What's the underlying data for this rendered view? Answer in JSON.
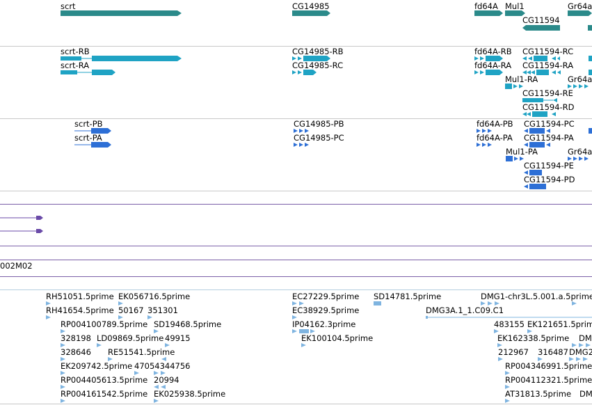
{
  "colors": {
    "gene": "#2b8a8a",
    "transcript": "#1fa3c4",
    "protein": "#2d6fd6",
    "purple": "#6a4aa8",
    "est": "#7fb4e0",
    "divider": "#c8c8c8",
    "purple_line": "#7a5fa8"
  },
  "gene_track": {
    "labels": [
      "scrt",
      "CG14985",
      "fd64A",
      "Mul1",
      "Gr64a",
      "CG11594"
    ]
  },
  "transcript_track": {
    "labels": [
      "scrt-RB",
      "scrt-RA",
      "CG14985-RB",
      "CG14985-RC",
      "fd64A-RB",
      "fd64A-RA",
      "CG11594-RC",
      "CG11594-RA",
      "Mul1-RA",
      "Gr64a",
      "CG11594-RE",
      "CG11594-RD"
    ]
  },
  "protein_track": {
    "labels": [
      "scrt-PB",
      "scrt-PA",
      "CG14985-PB",
      "CG14985-PC",
      "fd64A-PB",
      "fd64A-PA",
      "CG11594-PC",
      "CG11594-PA",
      "Mul1-PA",
      "Gr64a",
      "CG11594-PE",
      "CG11594-PD"
    ]
  },
  "misc_track": {
    "label": "002M02"
  },
  "est_track": {
    "labels": [
      "RH51051.5prime",
      "EK056716.5prime",
      "EC27229.5prime",
      "SD14781.5prime",
      "DMG1-chr3L.5.001.a.5prime",
      "RH41654.5prime",
      "50167",
      "351301",
      "EC38929.5prime",
      "DMG3A.1_1.C09.C1",
      "RP004100789.5prime",
      "SD19468.5prime",
      "IP04162.3prime",
      "483155",
      "EK121651.5prim",
      "328198",
      "LD09869.5prime",
      "49915",
      "EK100104.5prime",
      "EK162338.5prime",
      "DM",
      "328646",
      "RE51541.5prime",
      "212967",
      "316487",
      "DMG2",
      "EK209742.5prime",
      "47054344756",
      "RP004346991.5prime",
      "RP004405613.5prime",
      "20994",
      "RP004112321.5prime",
      "RP004161542.5prime",
      "EK025938.5prime",
      "AT31813.5prime",
      "DMG2"
    ]
  }
}
